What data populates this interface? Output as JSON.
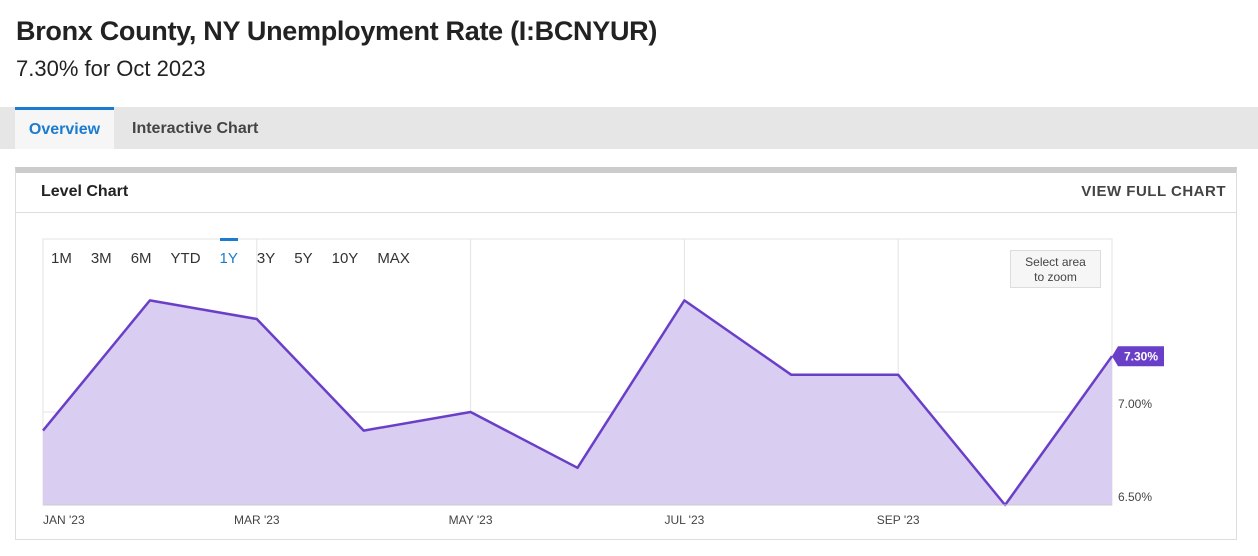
{
  "header": {
    "title": "Bronx County, NY Unemployment Rate (I:BCNYUR)",
    "subtitle": "7.30% for Oct 2023"
  },
  "tabs": [
    "Overview",
    "Interactive Chart"
  ],
  "card": {
    "title": "Level Chart",
    "link": "VIEW FULL CHART"
  },
  "ranges": [
    "1M",
    "3M",
    "6M",
    "YTD",
    "1Y",
    "3Y",
    "5Y",
    "10Y",
    "MAX"
  ],
  "zoom_hint": [
    "Select area",
    "to zoom"
  ],
  "chart_data": {
    "type": "area",
    "x": [
      0,
      1,
      2,
      3,
      4,
      5,
      6,
      7,
      8,
      9,
      10
    ],
    "values": [
      6.9,
      7.6,
      7.5,
      6.9,
      7.0,
      6.7,
      7.6,
      7.2,
      7.2,
      6.5,
      7.3
    ],
    "value_labels": [
      null,
      null,
      null,
      null,
      null,
      null,
      null,
      null,
      null,
      null,
      "7.30%"
    ],
    "color": "#6a3fc8",
    "fill": "#d9cdf1",
    "xlim": [
      0,
      10
    ],
    "xticks": [
      {
        "value": 0,
        "label": "JAN '23"
      },
      {
        "value": 2,
        "label": "MAR '23"
      },
      {
        "value": 4,
        "label": "MAY '23"
      },
      {
        "value": 6,
        "label": "JUL '23"
      },
      {
        "value": 8,
        "label": "SEP '23"
      }
    ],
    "ylim": [
      6.5,
      7.93
    ],
    "yticks": [
      {
        "value": 6.5,
        "label": "6.50%"
      },
      {
        "value": 7.0,
        "label": "7.00%"
      }
    ],
    "grid": true
  }
}
